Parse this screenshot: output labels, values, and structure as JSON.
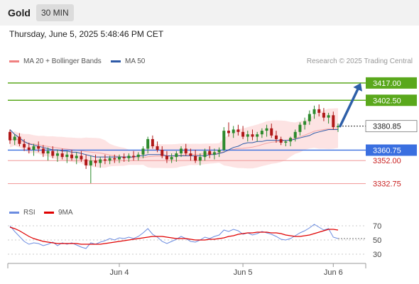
{
  "header": {
    "instrument": "Gold",
    "interval": "30 MIN"
  },
  "datetime": "Thursday, June 5, 2025 5:48:46 PM CET",
  "credit": "Research © 2025 Trading Central",
  "legend": {
    "main": [
      {
        "label": "MA 20 + Bollinger Bands",
        "color": "#f08080"
      },
      {
        "label": "MA 50",
        "color": "#2e5aa7"
      }
    ],
    "rsi": [
      {
        "label": "RSI",
        "color": "#6b8ce0"
      },
      {
        "label": "9MA",
        "color": "#e00000"
      }
    ]
  },
  "colors": {
    "up_candle": "#2d8a2d",
    "down_candle": "#b01818",
    "target_line": "#5aa81c",
    "pivot_line": "#3a6fe0",
    "support_line": "#f2a0a0",
    "bollinger_fill": "#fde3e3",
    "arrow": "#2e5fa8"
  },
  "chart_data": [
    {
      "type": "line",
      "title": "",
      "ylim": [
        3320,
        3430
      ],
      "x_ticks": [
        "Jun 4",
        "Jun 5",
        "Jun 6"
      ],
      "levels": [
        {
          "value": 3417.0,
          "label": "3417.00",
          "kind": "target"
        },
        {
          "value": 3402.5,
          "label": "3402.50",
          "kind": "target"
        },
        {
          "value": 3380.85,
          "label": "3380.85",
          "kind": "last"
        },
        {
          "value": 3360.75,
          "label": "3360.75",
          "kind": "pivot"
        },
        {
          "value": 3352.0,
          "label": "3352.00",
          "kind": "support"
        },
        {
          "value": 3332.75,
          "label": "3332.75",
          "kind": "support"
        }
      ],
      "candles": [
        [
          3376,
          3378,
          3366,
          3369
        ],
        [
          3369,
          3374,
          3365,
          3372
        ],
        [
          3372,
          3375,
          3364,
          3366
        ],
        [
          3366,
          3370,
          3360,
          3363
        ],
        [
          3363,
          3367,
          3358,
          3361
        ],
        [
          3361,
          3366,
          3356,
          3364
        ],
        [
          3364,
          3368,
          3359,
          3362
        ],
        [
          3362,
          3365,
          3355,
          3358
        ],
        [
          3358,
          3363,
          3352,
          3360
        ],
        [
          3360,
          3364,
          3354,
          3356
        ],
        [
          3356,
          3361,
          3351,
          3358
        ],
        [
          3358,
          3362,
          3353,
          3355
        ],
        [
          3355,
          3360,
          3350,
          3357
        ],
        [
          3357,
          3361,
          3352,
          3354
        ],
        [
          3354,
          3359,
          3349,
          3356
        ],
        [
          3356,
          3360,
          3351,
          3353
        ],
        [
          3353,
          3357,
          3345,
          3348
        ],
        [
          3348,
          3356,
          3333,
          3352
        ],
        [
          3352,
          3357,
          3347,
          3350
        ],
        [
          3350,
          3355,
          3346,
          3353
        ],
        [
          3353,
          3357,
          3349,
          3352
        ],
        [
          3352,
          3356,
          3349,
          3354
        ],
        [
          3354,
          3357,
          3350,
          3353
        ],
        [
          3353,
          3357,
          3350,
          3355
        ],
        [
          3355,
          3358,
          3351,
          3354
        ],
        [
          3354,
          3358,
          3351,
          3356
        ],
        [
          3356,
          3360,
          3352,
          3355
        ],
        [
          3355,
          3359,
          3352,
          3357
        ],
        [
          3357,
          3364,
          3354,
          3362
        ],
        [
          3362,
          3372,
          3358,
          3370
        ],
        [
          3370,
          3373,
          3362,
          3364
        ],
        [
          3364,
          3368,
          3359,
          3361
        ],
        [
          3361,
          3364,
          3354,
          3356
        ],
        [
          3356,
          3360,
          3350,
          3353
        ],
        [
          3353,
          3358,
          3350,
          3355
        ],
        [
          3355,
          3360,
          3351,
          3358
        ],
        [
          3358,
          3364,
          3355,
          3362
        ],
        [
          3362,
          3366,
          3356,
          3358
        ],
        [
          3358,
          3362,
          3352,
          3356
        ],
        [
          3356,
          3361,
          3350,
          3352
        ],
        [
          3352,
          3358,
          3348,
          3355
        ],
        [
          3355,
          3362,
          3352,
          3360
        ],
        [
          3360,
          3364,
          3354,
          3357
        ],
        [
          3357,
          3362,
          3353,
          3359
        ],
        [
          3359,
          3363,
          3355,
          3361
        ],
        [
          3361,
          3380,
          3360,
          3377
        ],
        [
          3377,
          3384,
          3372,
          3375
        ],
        [
          3375,
          3381,
          3371,
          3378
        ],
        [
          3378,
          3382,
          3373,
          3376
        ],
        [
          3376,
          3381,
          3370,
          3372
        ],
        [
          3372,
          3377,
          3368,
          3374
        ],
        [
          3374,
          3378,
          3369,
          3372
        ],
        [
          3372,
          3376,
          3368,
          3374
        ],
        [
          3374,
          3379,
          3371,
          3377
        ],
        [
          3377,
          3382,
          3372,
          3379
        ],
        [
          3379,
          3383,
          3371,
          3373
        ],
        [
          3373,
          3377,
          3367,
          3370
        ],
        [
          3370,
          3372,
          3365,
          3367
        ],
        [
          3367,
          3369,
          3364,
          3368
        ],
        [
          3368,
          3372,
          3364,
          3371
        ],
        [
          3371,
          3378,
          3368,
          3376
        ],
        [
          3376,
          3384,
          3373,
          3382
        ],
        [
          3382,
          3388,
          3378,
          3385
        ],
        [
          3385,
          3394,
          3382,
          3391
        ],
        [
          3391,
          3398,
          3387,
          3395
        ],
        [
          3395,
          3399,
          3389,
          3392
        ],
        [
          3392,
          3396,
          3385,
          3388
        ],
        [
          3388,
          3392,
          3383,
          3390
        ],
        [
          3390,
          3393,
          3378,
          3380
        ],
        [
          3380,
          3383,
          3376,
          3381
        ]
      ],
      "ma50": [
        3378,
        3374,
        3371,
        3368,
        3366,
        3365,
        3364,
        3363,
        3362,
        3361,
        3361,
        3360,
        3360,
        3359,
        3359,
        3358,
        3357,
        3356,
        3355,
        3355,
        3355,
        3355,
        3355,
        3355,
        3355,
        3355,
        3355,
        3356,
        3356,
        3357,
        3357,
        3357,
        3357,
        3356,
        3356,
        3356,
        3356,
        3356,
        3356,
        3356,
        3356,
        3356,
        3357,
        3357,
        3358,
        3359,
        3361,
        3363,
        3364,
        3366,
        3367,
        3367,
        3368,
        3368,
        3369,
        3369,
        3369,
        3369,
        3369,
        3369,
        3370,
        3371,
        3372,
        3373,
        3375,
        3376,
        3377,
        3378,
        3378,
        3378
      ]
    },
    {
      "type": "line",
      "title": "",
      "ylim": [
        20,
        80
      ],
      "y_ticks": [
        30,
        50,
        70
      ],
      "series": [
        {
          "name": "RSI",
          "values": [
            70,
            62,
            55,
            48,
            44,
            46,
            45,
            42,
            44,
            47,
            42,
            46,
            44,
            46,
            43,
            40,
            38,
            46,
            44,
            47,
            49,
            52,
            50,
            53,
            52,
            54,
            52,
            55,
            60,
            66,
            58,
            54,
            48,
            45,
            48,
            51,
            55,
            52,
            48,
            47,
            50,
            54,
            52,
            55,
            57,
            64,
            62,
            65,
            63,
            58,
            60,
            57,
            59,
            62,
            60,
            58,
            55,
            51,
            50,
            52,
            56,
            60,
            63,
            67,
            72,
            68,
            64,
            66,
            54,
            52
          ]
        },
        {
          "name": "9MA",
          "values": [
            68,
            66,
            63,
            59,
            55,
            52,
            50,
            48,
            47,
            46,
            45,
            45,
            45,
            45,
            45,
            44,
            44,
            44,
            44,
            44,
            45,
            46,
            47,
            48,
            49,
            50,
            51,
            52,
            53,
            54,
            55,
            55,
            55,
            54,
            53,
            52,
            52,
            52,
            51,
            50,
            50,
            50,
            51,
            51,
            52,
            53,
            55,
            56,
            58,
            59,
            60,
            60,
            61,
            61,
            61,
            60,
            60,
            59,
            57,
            56,
            55,
            55,
            56,
            57,
            59,
            61,
            63,
            65,
            65,
            64
          ]
        }
      ]
    }
  ]
}
